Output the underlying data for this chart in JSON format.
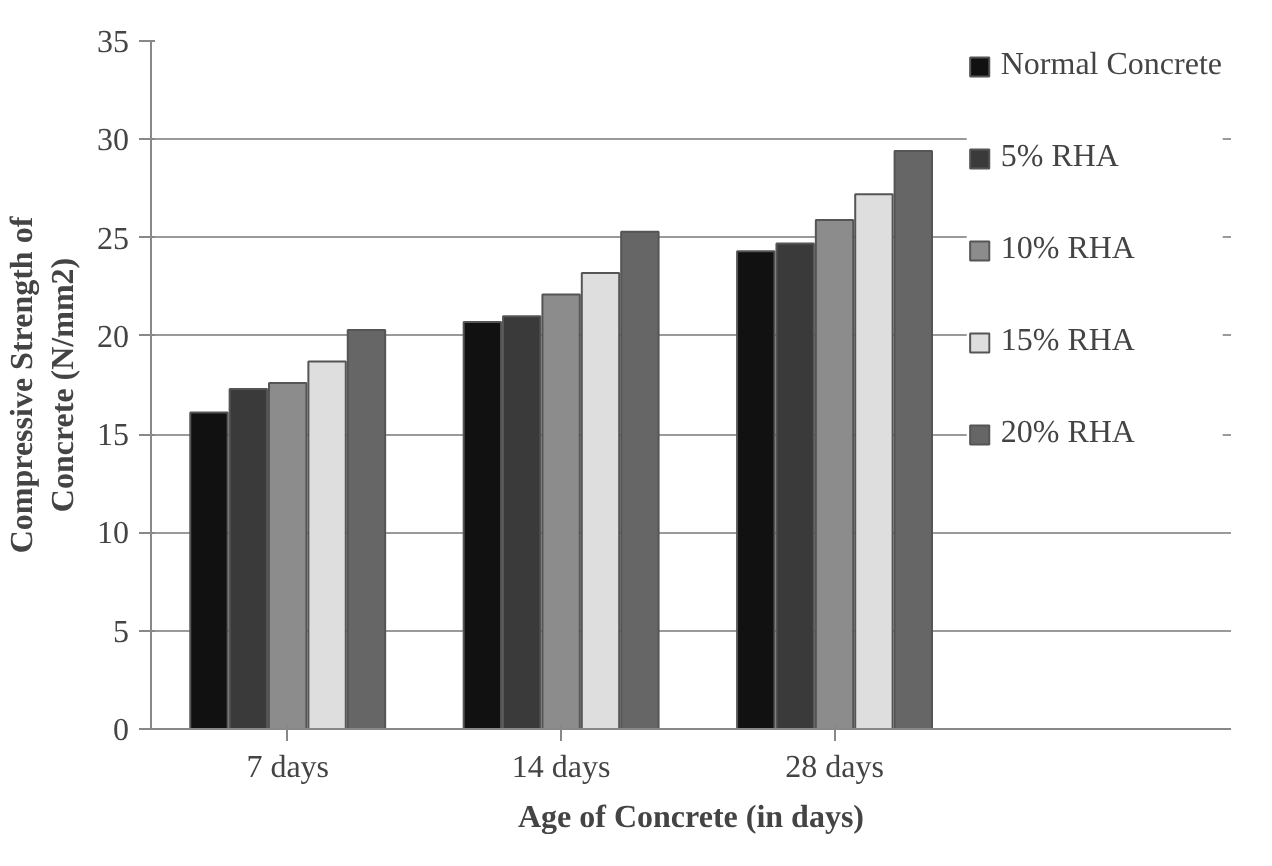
{
  "chart_data": {
    "type": "bar",
    "xlabel": "Age of Concrete (in days)",
    "ylabel": "Compressive Strength of Concrete (N/mm2)",
    "categories": [
      "7 days",
      "14 days",
      "28 days"
    ],
    "series": [
      {
        "name": "Normal Concrete",
        "color": "#111111",
        "values": [
          16.1,
          20.7,
          24.3
        ]
      },
      {
        "name": "5% RHA",
        "color": "#3a3a3a",
        "values": [
          17.3,
          21.0,
          24.7
        ]
      },
      {
        "name": "10% RHA",
        "color": "#8c8c8c",
        "values": [
          17.6,
          22.1,
          25.9
        ]
      },
      {
        "name": "15% RHA",
        "color": "#dedede",
        "values": [
          18.7,
          23.2,
          27.2
        ]
      },
      {
        "name": "20% RHA",
        "color": "#666666",
        "values": [
          20.3,
          25.3,
          29.4
        ]
      }
    ],
    "ylim": [
      0,
      35
    ],
    "yticks": [
      0,
      5,
      10,
      15,
      20,
      25,
      30,
      35
    ],
    "grid": "y",
    "legend": "right"
  }
}
